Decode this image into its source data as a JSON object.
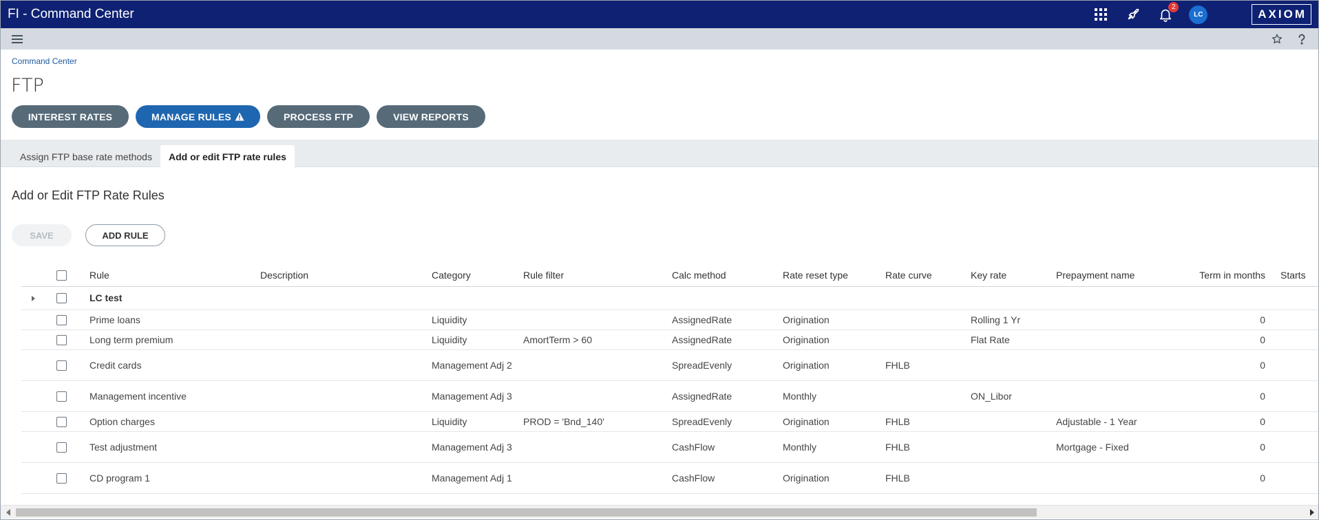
{
  "header": {
    "app_title": "FI - Command Center",
    "notification_count": "2",
    "avatar_initials": "LC",
    "logo_text": "AXIOM"
  },
  "breadcrumb": "Command Center",
  "page_title": "FTP",
  "nav_buttons": {
    "interest_rates": "INTEREST RATES",
    "manage_rules": "MANAGE RULES",
    "process_ftp": "PROCESS FTP",
    "view_reports": "VIEW REPORTS"
  },
  "tabs": {
    "assign": "Assign FTP base rate methods",
    "add_edit": "Add or edit FTP rate rules"
  },
  "section_title": "Add or Edit FTP Rate Rules",
  "actions": {
    "save": "SAVE",
    "add_rule": "ADD RULE"
  },
  "table": {
    "columns": {
      "rule": "Rule",
      "description": "Description",
      "category": "Category",
      "rule_filter": "Rule filter",
      "calc_method": "Calc method",
      "rate_reset_type": "Rate reset type",
      "rate_curve": "Rate curve",
      "key_rate": "Key rate",
      "prepayment_name": "Prepayment name",
      "term_in_months": "Term in months",
      "starts": "Starts"
    },
    "group": {
      "name": "LC test"
    },
    "rows": [
      {
        "rule": "Prime loans",
        "description": "",
        "category": "Liquidity",
        "rule_filter": "",
        "calc_method": "AssignedRate",
        "rate_reset_type": "Origination",
        "rate_curve": "",
        "key_rate": "Rolling 1 Yr",
        "prepayment_name": "",
        "term": "0"
      },
      {
        "rule": "Long term premium",
        "description": "",
        "category": "Liquidity",
        "rule_filter": "AmortTerm > 60",
        "calc_method": "AssignedRate",
        "rate_reset_type": "Origination",
        "rate_curve": "",
        "key_rate": "Flat Rate",
        "prepayment_name": "",
        "term": "0"
      },
      {
        "rule": "Credit cards",
        "description": "",
        "category": "Management Adj 2",
        "rule_filter": "",
        "calc_method": "SpreadEvenly",
        "rate_reset_type": "Origination",
        "rate_curve": "FHLB",
        "key_rate": "",
        "prepayment_name": "",
        "term": "0"
      },
      {
        "rule": "Management incentive",
        "description": "",
        "category": "Management Adj 3",
        "rule_filter": "",
        "calc_method": "AssignedRate",
        "rate_reset_type": "Monthly",
        "rate_curve": "",
        "key_rate": "ON_Libor",
        "prepayment_name": "",
        "term": "0"
      },
      {
        "rule": "Option charges",
        "description": "",
        "category": "Liquidity",
        "rule_filter": "PROD = 'Bnd_140'",
        "calc_method": "SpreadEvenly",
        "rate_reset_type": "Origination",
        "rate_curve": "FHLB",
        "key_rate": "",
        "prepayment_name": "Adjustable - 1 Year",
        "term": "0"
      },
      {
        "rule": "Test adjustment",
        "description": "",
        "category": "Management Adj 3",
        "rule_filter": "",
        "calc_method": "CashFlow",
        "rate_reset_type": "Monthly",
        "rate_curve": "FHLB",
        "key_rate": "",
        "prepayment_name": "Mortgage - Fixed",
        "term": "0"
      },
      {
        "rule": "CD program 1",
        "description": "",
        "category": "Management Adj 1",
        "rule_filter": "",
        "calc_method": "CashFlow",
        "rate_reset_type": "Origination",
        "rate_curve": "FHLB",
        "key_rate": "",
        "prepayment_name": "",
        "term": "0"
      }
    ]
  },
  "icons": {
    "apps": "apps-grid-icon",
    "launch": "rocket-icon",
    "notifications": "bell-icon",
    "menu": "hamburger-menu-icon",
    "favorite": "star-icon",
    "help": "help-icon",
    "warning": "warning-icon"
  },
  "colors": {
    "topbar": "#0e2173",
    "active_button": "#1f66b0",
    "nav_button": "#566a78",
    "badge": "#e53935",
    "avatar": "#1a6fd1"
  }
}
